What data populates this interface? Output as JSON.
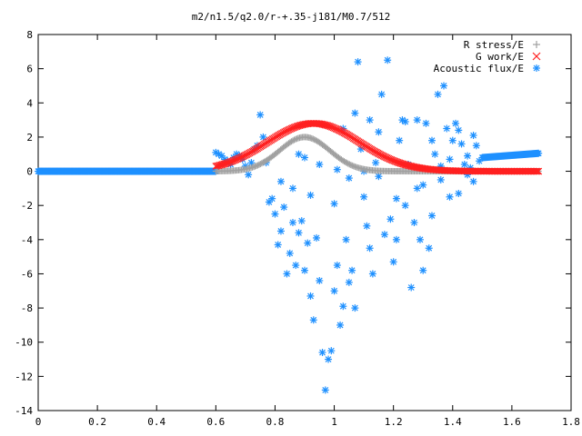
{
  "chart_data": {
    "type": "scatter",
    "title": "m2/n1.5/q2.0/r-+.35-j181/M0.7/512",
    "xlim": [
      0,
      1.8
    ],
    "ylim": [
      -14,
      8
    ],
    "x_ticks": [
      0,
      0.2,
      0.4,
      0.6,
      0.8,
      1,
      1.2,
      1.4,
      1.6,
      1.8
    ],
    "x_tick_labels": [
      "0",
      "0.2",
      "0.4",
      "0.6",
      "0.8",
      "1",
      "1.2",
      "1.4",
      "1.6",
      "1.8"
    ],
    "y_ticks": [
      -14,
      -12,
      -10,
      -8,
      -6,
      -4,
      -2,
      0,
      2,
      4,
      6,
      8
    ],
    "y_tick_labels": [
      "-14",
      "-12",
      "-10",
      "-8",
      "-6",
      "-4",
      "-2",
      "0",
      "2",
      "4",
      "6",
      "8"
    ],
    "grid": false,
    "legend_position": "top-right",
    "series": [
      {
        "name": "R stress/E",
        "marker": "plus",
        "color": "#a0a0a0",
        "gaussians": [
          {
            "amp": 2.0,
            "center": 0.9,
            "width": 0.12
          }
        ],
        "range": [
          0.6,
          1.69
        ],
        "n": 240
      },
      {
        "name": "G work/E",
        "marker": "x",
        "color": "#ff2020",
        "gaussians": [
          {
            "amp": 2.8,
            "center": 0.93,
            "width": 0.22
          }
        ],
        "range": [
          0.6,
          1.69
        ],
        "n": 240
      },
      {
        "name": "Acoustic flux/E",
        "marker": "star",
        "color": "#1e90ff",
        "dense_segments": [
          {
            "x": [
              0.0,
              0.6
            ],
            "y": [
              0,
              0
            ],
            "n": 220
          },
          {
            "x": [
              1.5,
              1.69
            ],
            "y": [
              0.8,
              1.05
            ],
            "n": 60
          }
        ],
        "points": [
          [
            0.6,
            1.1
          ],
          [
            0.61,
            1.0
          ],
          [
            0.62,
            0.9
          ],
          [
            0.63,
            0.7
          ],
          [
            0.64,
            0.6
          ],
          [
            0.65,
            0.4
          ],
          [
            0.66,
            0.8
          ],
          [
            0.67,
            1.0
          ],
          [
            0.68,
            0.9
          ],
          [
            0.69,
            0.7
          ],
          [
            0.7,
            0.3
          ],
          [
            0.71,
            -0.2
          ],
          [
            0.72,
            0.5
          ],
          [
            0.73,
            1.3
          ],
          [
            0.74,
            1.5
          ],
          [
            0.75,
            3.3
          ],
          [
            0.76,
            2.0
          ],
          [
            0.77,
            0.5
          ],
          [
            0.78,
            -1.8
          ],
          [
            0.79,
            -1.6
          ],
          [
            0.8,
            -2.5
          ],
          [
            0.81,
            -4.3
          ],
          [
            0.82,
            -3.5
          ],
          [
            0.83,
            -2.1
          ],
          [
            0.84,
            -6.0
          ],
          [
            0.85,
            -4.8
          ],
          [
            0.86,
            -1.0
          ],
          [
            0.87,
            -5.5
          ],
          [
            0.88,
            -3.6
          ],
          [
            0.89,
            -2.9
          ],
          [
            0.9,
            -5.8
          ],
          [
            0.91,
            -4.2
          ],
          [
            0.92,
            -7.3
          ],
          [
            0.93,
            -8.7
          ],
          [
            0.94,
            -3.9
          ],
          [
            0.95,
            -6.4
          ],
          [
            0.96,
            -10.6
          ],
          [
            0.97,
            -12.8
          ],
          [
            0.98,
            -11.0
          ],
          [
            0.99,
            -10.5
          ],
          [
            1.0,
            -7.0
          ],
          [
            1.01,
            -5.5
          ],
          [
            1.02,
            -9.0
          ],
          [
            1.03,
            -7.9
          ],
          [
            1.04,
            -4.0
          ],
          [
            1.05,
            -6.5
          ],
          [
            1.06,
            -5.8
          ],
          [
            1.07,
            -8.0
          ],
          [
            1.08,
            6.4
          ],
          [
            1.09,
            1.3
          ],
          [
            1.1,
            -1.5
          ],
          [
            1.11,
            -3.2
          ],
          [
            1.12,
            -4.5
          ],
          [
            1.13,
            -6.0
          ],
          [
            1.14,
            0.5
          ],
          [
            1.15,
            2.3
          ],
          [
            1.16,
            4.5
          ],
          [
            1.17,
            -3.7
          ],
          [
            1.18,
            6.5
          ],
          [
            1.19,
            -2.8
          ],
          [
            1.2,
            -5.3
          ],
          [
            1.21,
            -4.0
          ],
          [
            1.22,
            1.8
          ],
          [
            1.23,
            3.0
          ],
          [
            1.24,
            -2.0
          ],
          [
            1.25,
            0.4
          ],
          [
            1.26,
            -6.8
          ],
          [
            1.27,
            -3.0
          ],
          [
            1.28,
            -1.0
          ],
          [
            1.29,
            -4.0
          ],
          [
            1.3,
            -5.8
          ],
          [
            1.31,
            2.8
          ],
          [
            1.32,
            -4.5
          ],
          [
            1.33,
            -2.6
          ],
          [
            1.34,
            1.0
          ],
          [
            1.35,
            4.5
          ],
          [
            1.36,
            0.3
          ],
          [
            1.37,
            5.0
          ],
          [
            1.38,
            2.5
          ],
          [
            1.39,
            -1.5
          ],
          [
            1.4,
            1.8
          ],
          [
            1.41,
            2.8
          ],
          [
            1.42,
            -1.3
          ],
          [
            1.43,
            1.6
          ],
          [
            1.44,
            0.4
          ],
          [
            1.45,
            0.9
          ],
          [
            1.46,
            0.2
          ],
          [
            1.47,
            2.1
          ],
          [
            1.48,
            1.5
          ],
          [
            1.49,
            0.6
          ],
          [
            0.95,
            0.4
          ],
          [
            1.01,
            0.1
          ],
          [
            1.03,
            2.5
          ],
          [
            0.88,
            1.0
          ],
          [
            0.92,
            -1.4
          ],
          [
            1.07,
            3.4
          ],
          [
            1.12,
            3.0
          ],
          [
            1.15,
            -0.3
          ],
          [
            1.24,
            2.9
          ],
          [
            1.28,
            3.0
          ],
          [
            1.33,
            1.8
          ],
          [
            1.42,
            2.4
          ],
          [
            0.82,
            -0.6
          ],
          [
            0.86,
            -3.0
          ],
          [
            0.9,
            0.8
          ],
          [
            1.0,
            -1.9
          ],
          [
            1.05,
            -0.4
          ],
          [
            1.1,
            0.0
          ],
          [
            1.21,
            -1.6
          ],
          [
            1.3,
            -0.8
          ],
          [
            1.36,
            -0.5
          ],
          [
            1.39,
            0.7
          ],
          [
            1.45,
            -0.2
          ],
          [
            1.47,
            -0.6
          ]
        ]
      }
    ]
  }
}
